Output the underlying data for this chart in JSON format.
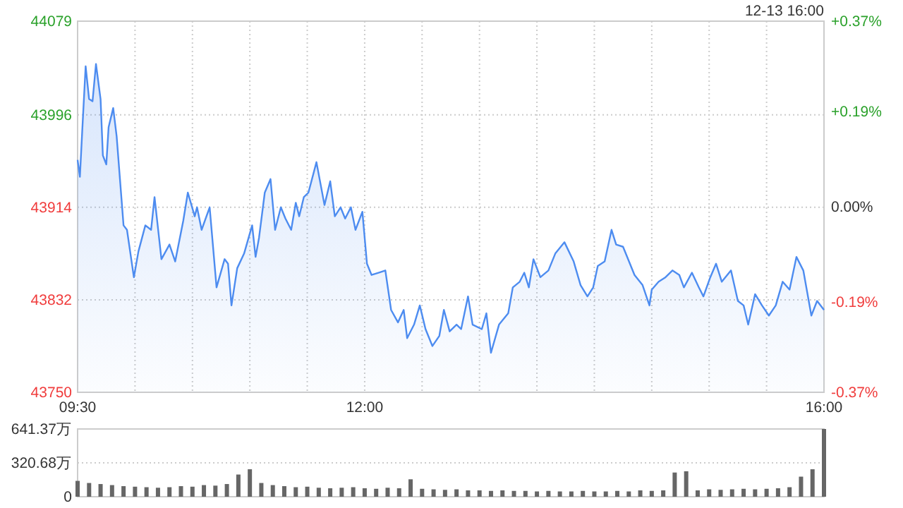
{
  "chart_data": [
    {
      "type": "area",
      "annotations": [
        "12-13 16:00"
      ],
      "xlim": [
        9.5,
        16
      ],
      "xticks": [
        {
          "value": 9.5,
          "label": "09:30"
        },
        {
          "value": 10,
          "label": null
        },
        {
          "value": 10.5,
          "label": null
        },
        {
          "value": 11,
          "label": null
        },
        {
          "value": 11.5,
          "label": null
        },
        {
          "value": 12,
          "label": "12:00"
        },
        {
          "value": 12.5,
          "label": null
        },
        {
          "value": 13,
          "label": null
        },
        {
          "value": 13.5,
          "label": null
        },
        {
          "value": 14,
          "label": null
        },
        {
          "value": 14.5,
          "label": null
        },
        {
          "value": 15,
          "label": null
        },
        {
          "value": 15.5,
          "label": null
        },
        {
          "value": 16,
          "label": "16:00"
        }
      ],
      "ylim": [
        43750,
        44079
      ],
      "yticks": [
        43750,
        43832,
        43914,
        43996,
        44079
      ],
      "y2lim": [
        -0.37,
        0.37
      ],
      "y2ticks": [
        {
          "value": -0.37,
          "label": "-0.37%"
        },
        {
          "value": -0.19,
          "label": "-0.19%"
        },
        {
          "value": 0,
          "label": "0.00%"
        },
        {
          "value": 0.19,
          "label": "+0.19%"
        },
        {
          "value": 0.37,
          "label": "+0.37%"
        }
      ],
      "grid": true,
      "series": [
        {
          "color": "#4d8cf0",
          "x": [
            9.5,
            9.52,
            9.54,
            9.57,
            9.6,
            9.63,
            9.66,
            9.7,
            9.72,
            9.75,
            9.77,
            9.81,
            9.84,
            9.9,
            9.93,
            9.99,
            10.03,
            10.09,
            10.14,
            10.17,
            10.23,
            10.3,
            10.35,
            10.42,
            10.46,
            10.52,
            10.54,
            10.58,
            10.65,
            10.71,
            10.78,
            10.81,
            10.84,
            10.89,
            10.95,
            11.02,
            11.05,
            11.08,
            11.13,
            11.18,
            11.22,
            11.27,
            11.31,
            11.36,
            11.4,
            11.43,
            11.47,
            11.51,
            11.58,
            11.65,
            11.7,
            11.74,
            11.79,
            11.83,
            11.88,
            11.92,
            11.98,
            12.02,
            12.06,
            12.12,
            12.18,
            12.23,
            12.29,
            12.34,
            12.37,
            12.43,
            12.48,
            12.53,
            12.59,
            12.65,
            12.69,
            12.74,
            12.8,
            12.84,
            12.9,
            12.94,
            13.02,
            13.06,
            13.1,
            13.17,
            13.25,
            13.29,
            13.35,
            13.39,
            13.43,
            13.47,
            13.53,
            13.6,
            13.66,
            13.74,
            13.82,
            13.88,
            13.94,
            13.99,
            14.03,
            14.09,
            14.15,
            14.19,
            14.25,
            14.31,
            14.35,
            14.42,
            14.48,
            14.5,
            14.56,
            14.62,
            14.68,
            14.74,
            14.78,
            14.85,
            14.91,
            14.95,
            15.01,
            15.06,
            15.11,
            15.19,
            15.25,
            15.3,
            15.34,
            15.4,
            15.46,
            15.52,
            15.58,
            15.64,
            15.7,
            15.76,
            15.82,
            15.89,
            15.94,
            16
          ],
          "values": [
            43956,
            43941,
            43981,
            44039,
            44010,
            44008,
            44041,
            44010,
            43960,
            43952,
            43985,
            44002,
            43977,
            43898,
            43894,
            43852,
            43875,
            43898,
            43894,
            43923,
            43868,
            43881,
            43866,
            43902,
            43927,
            43906,
            43914,
            43894,
            43914,
            43843,
            43868,
            43864,
            43827,
            43860,
            43873,
            43898,
            43870,
            43887,
            43927,
            43939,
            43894,
            43914,
            43904,
            43894,
            43918,
            43906,
            43923,
            43927,
            43954,
            43916,
            43937,
            43906,
            43914,
            43904,
            43914,
            43894,
            43910,
            43864,
            43854,
            43856,
            43858,
            43823,
            43812,
            43823,
            43798,
            43810,
            43827,
            43806,
            43791,
            43800,
            43823,
            43804,
            43810,
            43806,
            43835,
            43810,
            43806,
            43820,
            43785,
            43810,
            43820,
            43843,
            43848,
            43856,
            43843,
            43868,
            43852,
            43858,
            43873,
            43883,
            43866,
            43845,
            43835,
            43843,
            43862,
            43866,
            43894,
            43881,
            43879,
            43864,
            43854,
            43845,
            43827,
            43841,
            43848,
            43852,
            43858,
            43854,
            43843,
            43856,
            43843,
            43835,
            43852,
            43864,
            43848,
            43858,
            43831,
            43827,
            43810,
            43837,
            43827,
            43818,
            43827,
            43848,
            43841,
            43870,
            43858,
            43818,
            43831,
            43823
          ]
        }
      ]
    },
    {
      "type": "bar",
      "tick_labels": "y",
      "grid": "y",
      "xlim": [
        9.5,
        16
      ],
      "ylim": [
        0,
        641.37
      ],
      "yticks": [
        0,
        {
          "value": 320.68,
          "label": "320.68万"
        },
        {
          "value": 641.37,
          "label": "641.37万"
        }
      ],
      "series": [
        {
          "color": "#666666",
          "x": [
            9.5,
            9.6,
            9.7,
            9.8,
            9.9,
            10,
            10.1,
            10.2,
            10.3,
            10.4,
            10.5,
            10.6,
            10.7,
            10.8,
            10.9,
            11,
            11.1,
            11.2,
            11.3,
            11.4,
            11.5,
            11.6,
            11.7,
            11.8,
            11.9,
            12,
            12.1,
            12.2,
            12.3,
            12.4,
            12.5,
            12.6,
            12.7,
            12.8,
            12.9,
            13,
            13.1,
            13.2,
            13.3,
            13.4,
            13.5,
            13.6,
            13.7,
            13.8,
            13.9,
            14,
            14.1,
            14.2,
            14.3,
            14.4,
            14.5,
            14.6,
            14.7,
            14.8,
            14.9,
            15,
            15.1,
            15.2,
            15.3,
            15.4,
            15.5,
            15.6,
            15.7,
            15.8,
            15.9,
            16
          ],
          "values": [
            150,
            130,
            120,
            110,
            100,
            95,
            90,
            85,
            90,
            100,
            95,
            110,
            105,
            120,
            210,
            260,
            130,
            110,
            100,
            90,
            95,
            85,
            80,
            85,
            90,
            80,
            75,
            85,
            80,
            165,
            75,
            70,
            65,
            70,
            60,
            60,
            55,
            60,
            55,
            55,
            50,
            55,
            50,
            50,
            55,
            50,
            50,
            55,
            50,
            60,
            55,
            60,
            229,
            241,
            60,
            70,
            65,
            70,
            75,
            70,
            75,
            80,
            90,
            190,
            260,
            641.37
          ]
        }
      ]
    }
  ]
}
